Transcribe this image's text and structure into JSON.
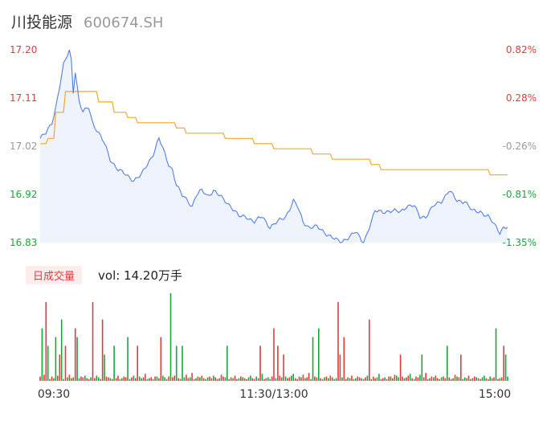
{
  "header": {
    "name": "川投能源",
    "code": "600674.SH"
  },
  "volume_tab": {
    "label": "日成交量",
    "value_text": "vol: 14.20万手"
  },
  "colors": {
    "price_line": "#4f7fe6",
    "price_fill": "#eef3fc",
    "avg_line": "#f5a623",
    "up": "#e03b3b",
    "down": "#14a83b",
    "neutral": "#999999"
  },
  "chart_data": {
    "type": "line",
    "y_ticks_left": [
      {
        "label": "17.20",
        "value": 17.2,
        "color": "up"
      },
      {
        "label": "17.11",
        "value": 17.11,
        "color": "up"
      },
      {
        "label": "17.02",
        "value": 17.02,
        "color": "neutral"
      },
      {
        "label": "16.92",
        "value": 16.92,
        "color": "down"
      },
      {
        "label": "16.83",
        "value": 16.83,
        "color": "down"
      }
    ],
    "y_ticks_right": [
      {
        "label": "0.82%",
        "color": "up"
      },
      {
        "label": "0.28%",
        "color": "up"
      },
      {
        "label": "-0.26%",
        "color": "neutral"
      },
      {
        "label": "-0.81%",
        "color": "down"
      },
      {
        "label": "-1.35%",
        "color": "down"
      }
    ],
    "ylim": [
      16.83,
      17.2
    ],
    "x_labels": [
      "09:30",
      "11:30/13:00",
      "15:00"
    ],
    "n_points": 241,
    "price_keypoints": [
      [
        0,
        17.03
      ],
      [
        3,
        17.04
      ],
      [
        6,
        17.06
      ],
      [
        8,
        17.09
      ],
      [
        10,
        17.13
      ],
      [
        12,
        17.17
      ],
      [
        14,
        17.19
      ],
      [
        15,
        17.2
      ],
      [
        16,
        17.18
      ],
      [
        17,
        17.12
      ],
      [
        18,
        17.16
      ],
      [
        19,
        17.13
      ],
      [
        20,
        17.1
      ],
      [
        22,
        17.08
      ],
      [
        25,
        17.09
      ],
      [
        27,
        17.06
      ],
      [
        30,
        17.04
      ],
      [
        33,
        17.02
      ],
      [
        36,
        16.99
      ],
      [
        40,
        16.97
      ],
      [
        44,
        16.96
      ],
      [
        48,
        16.95
      ],
      [
        52,
        16.96
      ],
      [
        55,
        16.98
      ],
      [
        58,
        17.0
      ],
      [
        61,
        17.03
      ],
      [
        63,
        17.01
      ],
      [
        66,
        16.98
      ],
      [
        68,
        16.97
      ],
      [
        70,
        16.94
      ],
      [
        73,
        16.92
      ],
      [
        76,
        16.91
      ],
      [
        78,
        16.9
      ],
      [
        80,
        16.92
      ],
      [
        83,
        16.93
      ],
      [
        86,
        16.92
      ],
      [
        89,
        16.93
      ],
      [
        92,
        16.92
      ],
      [
        95,
        16.91
      ],
      [
        98,
        16.9
      ],
      [
        102,
        16.88
      ],
      [
        106,
        16.88
      ],
      [
        110,
        16.87
      ],
      [
        114,
        16.88
      ],
      [
        118,
        16.86
      ],
      [
        122,
        16.87
      ],
      [
        126,
        16.88
      ],
      [
        130,
        16.91
      ],
      [
        132,
        16.9
      ],
      [
        135,
        16.87
      ],
      [
        138,
        16.86
      ],
      [
        142,
        16.86
      ],
      [
        146,
        16.85
      ],
      [
        150,
        16.84
      ],
      [
        154,
        16.83
      ],
      [
        158,
        16.84
      ],
      [
        162,
        16.85
      ],
      [
        166,
        16.83
      ],
      [
        170,
        16.87
      ],
      [
        172,
        16.89
      ],
      [
        176,
        16.89
      ],
      [
        180,
        16.89
      ],
      [
        185,
        16.89
      ],
      [
        188,
        16.9
      ],
      [
        192,
        16.9
      ],
      [
        195,
        16.88
      ],
      [
        198,
        16.88
      ],
      [
        202,
        16.9
      ],
      [
        206,
        16.91
      ],
      [
        210,
        16.93
      ],
      [
        214,
        16.91
      ],
      [
        218,
        16.91
      ],
      [
        222,
        16.89
      ],
      [
        226,
        16.89
      ],
      [
        230,
        16.88
      ],
      [
        234,
        16.86
      ],
      [
        236,
        16.85
      ],
      [
        238,
        16.86
      ],
      [
        240,
        16.86
      ]
    ],
    "avg_keypoints": [
      [
        0,
        17.02
      ],
      [
        4,
        17.03
      ],
      [
        8,
        17.08
      ],
      [
        13,
        17.12
      ],
      [
        20,
        17.12
      ],
      [
        30,
        17.1
      ],
      [
        38,
        17.08
      ],
      [
        45,
        17.07
      ],
      [
        50,
        17.06
      ],
      [
        65,
        17.06
      ],
      [
        70,
        17.05
      ],
      [
        75,
        17.04
      ],
      [
        90,
        17.04
      ],
      [
        95,
        17.03
      ],
      [
        105,
        17.03
      ],
      [
        110,
        17.02
      ],
      [
        120,
        17.01
      ],
      [
        140,
        17.0
      ],
      [
        150,
        16.99
      ],
      [
        170,
        16.98
      ],
      [
        175,
        16.97
      ],
      [
        230,
        16.97
      ],
      [
        231,
        16.96
      ],
      [
        240,
        16.96
      ]
    ],
    "volume_pattern": [
      5,
      3,
      7,
      6,
      4,
      2,
      5,
      3,
      4,
      6,
      8,
      3,
      2,
      5,
      4,
      7,
      3,
      4,
      9,
      2,
      3,
      5,
      4,
      6,
      3,
      2,
      4,
      5,
      3,
      6,
      4,
      2,
      3,
      7,
      5,
      4,
      3,
      2,
      4,
      3,
      6,
      2,
      3,
      5,
      4,
      3,
      2,
      4,
      6,
      3,
      2,
      5,
      3,
      4,
      8,
      2,
      3,
      4,
      2,
      5
    ],
    "volume_spikes": [
      [
        1,
        6
      ],
      [
        3,
        9
      ],
      [
        4,
        4
      ],
      [
        8,
        5
      ],
      [
        10,
        3
      ],
      [
        11,
        7
      ],
      [
        13,
        4
      ],
      [
        18,
        6
      ],
      [
        19,
        5
      ],
      [
        27,
        9
      ],
      [
        32,
        7
      ],
      [
        33,
        3
      ],
      [
        38,
        4
      ],
      [
        45,
        5
      ],
      [
        50,
        4
      ],
      [
        62,
        5
      ],
      [
        67,
        10
      ],
      [
        70,
        4
      ],
      [
        73,
        4
      ],
      [
        96,
        4
      ],
      [
        113,
        4
      ],
      [
        120,
        6
      ],
      [
        122,
        4
      ],
      [
        125,
        3
      ],
      [
        140,
        5
      ],
      [
        143,
        6
      ],
      [
        153,
        9
      ],
      [
        154,
        3
      ],
      [
        156,
        5
      ],
      [
        169,
        7
      ],
      [
        185,
        3
      ],
      [
        196,
        3
      ],
      [
        209,
        4
      ],
      [
        216,
        3
      ],
      [
        234,
        6
      ],
      [
        238,
        4
      ],
      [
        239,
        3
      ]
    ],
    "volume_up_pattern": [
      1,
      0,
      1,
      1,
      0,
      1,
      1,
      0,
      0,
      1,
      1,
      0,
      1,
      1,
      0,
      1,
      0,
      1,
      1,
      0,
      0,
      1
    ]
  }
}
